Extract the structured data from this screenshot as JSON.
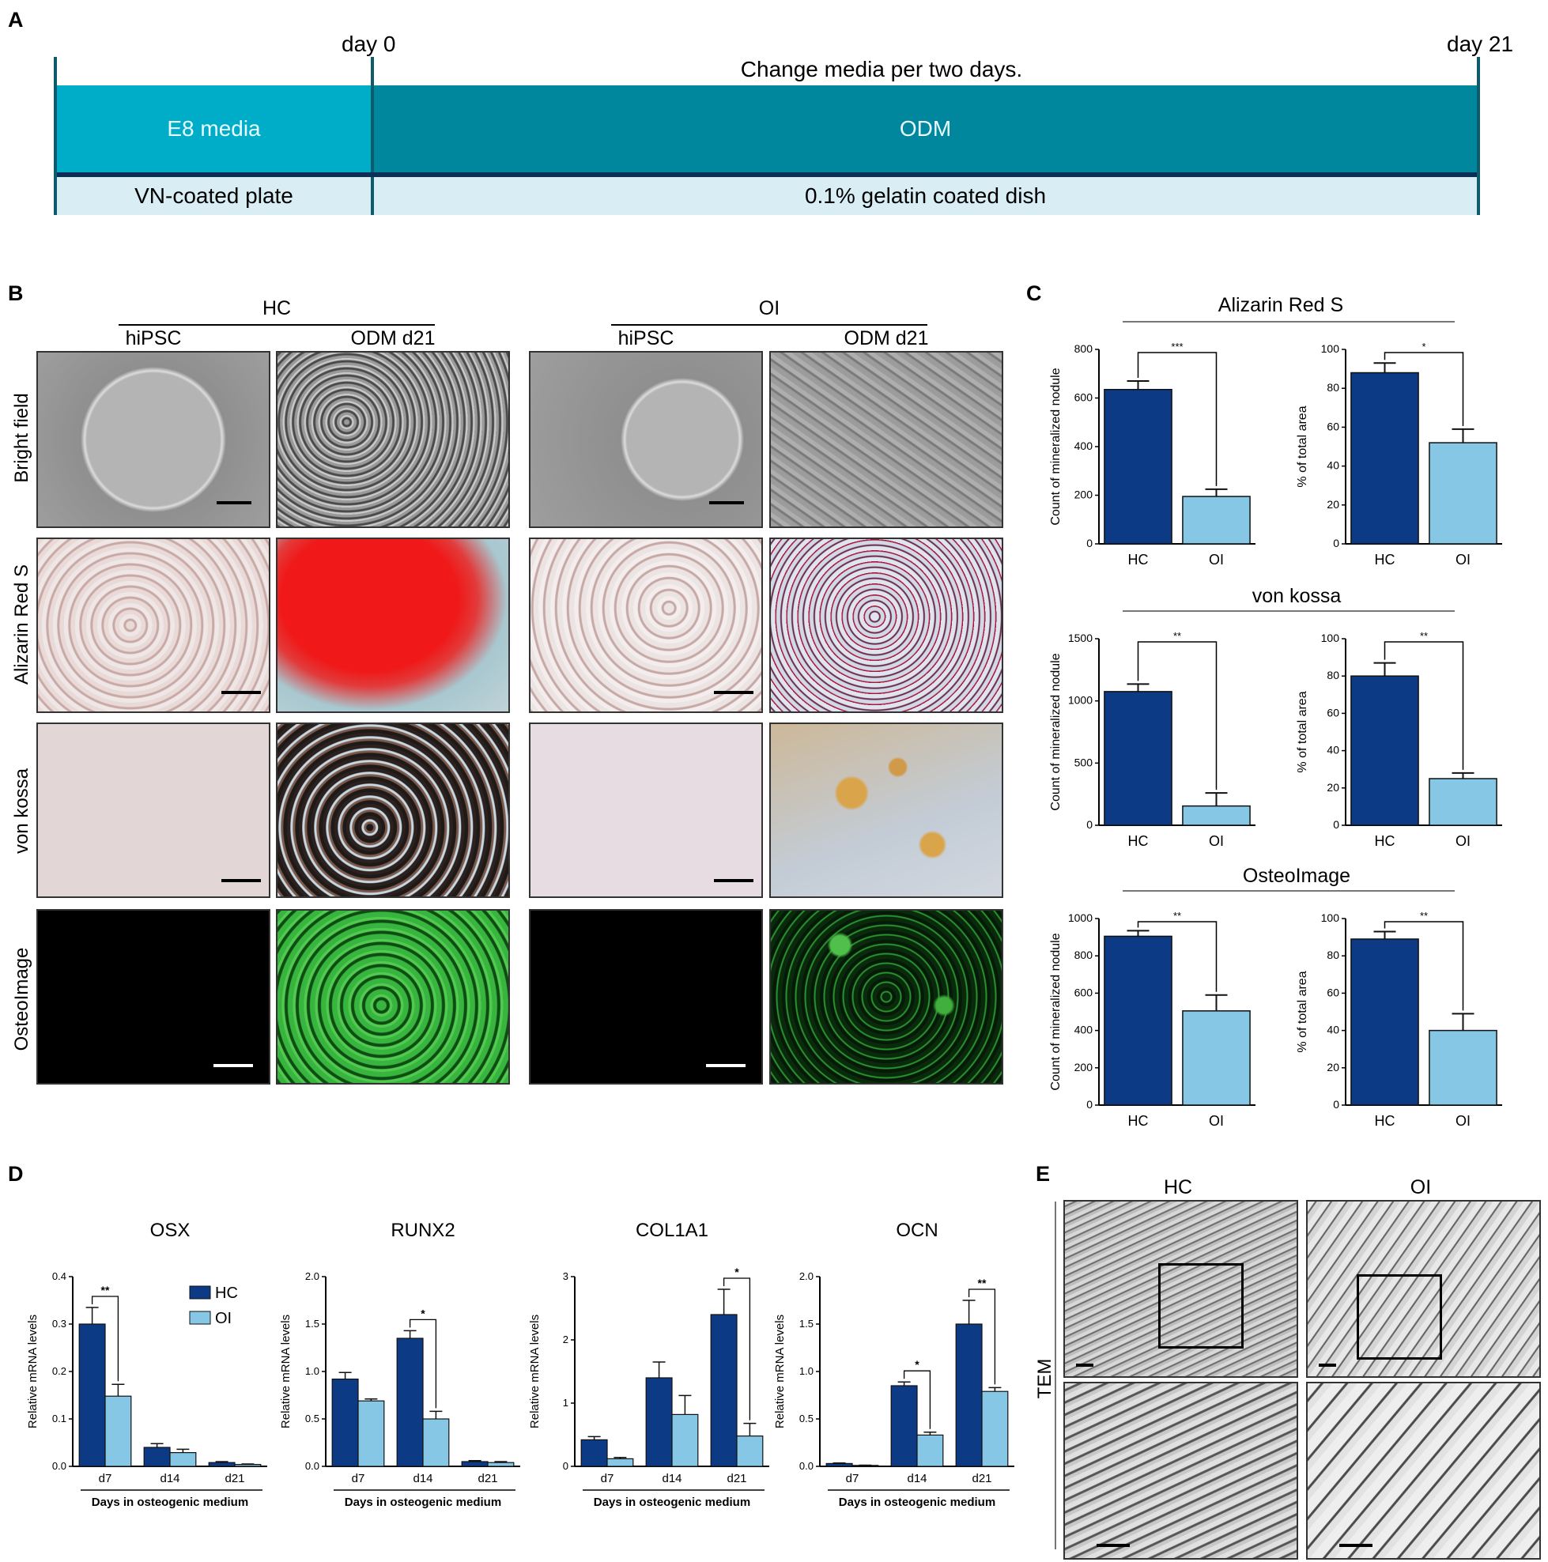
{
  "panels": {
    "A": "A",
    "B": "B",
    "C": "C",
    "D": "D",
    "E": "E"
  },
  "timeline": {
    "day0": "day 0",
    "day21": "day 21",
    "note": "Change media per two days.",
    "band1_left": "E8 media",
    "band1_right": "ODM",
    "band2_left": "VN-coated plate",
    "band2_right": "0.1% gelatin coated dish",
    "colors": {
      "teal_light": "#00adc9",
      "teal_dark": "#00879d",
      "pale": "#d8eef4",
      "divider": "#0d2f55"
    }
  },
  "micrographs": {
    "groups": [
      "HC",
      "OI"
    ],
    "columns": [
      "hiPSC",
      "ODM d21",
      "hiPSC",
      "ODM d21"
    ],
    "rows": [
      "Bright field",
      "Alizarin Red S",
      "von kossa",
      "OsteoImage"
    ]
  },
  "colors": {
    "hc": "#0d3a85",
    "oi": "#86c7e6"
  },
  "chart_data": [
    {
      "type": "bar",
      "title": "Alizarin Red S",
      "ylabel": "Count of mineralized nodule",
      "categories": [
        "HC",
        "OI"
      ],
      "values": [
        635,
        195
      ],
      "errors": [
        35,
        30
      ],
      "ylim": [
        0,
        800
      ],
      "yticks": [
        0,
        200,
        400,
        600,
        800
      ],
      "significance": "***"
    },
    {
      "type": "bar",
      "title": "",
      "ylabel": "% of total area",
      "categories": [
        "HC",
        "OI"
      ],
      "values": [
        88,
        52
      ],
      "errors": [
        5,
        7
      ],
      "ylim": [
        0,
        100
      ],
      "yticks": [
        0,
        20,
        40,
        60,
        80,
        100
      ],
      "significance": "*"
    },
    {
      "type": "bar",
      "title": "von kossa",
      "ylabel": "Count of mineralized nodule",
      "categories": [
        "HC",
        "OI"
      ],
      "values": [
        1075,
        155
      ],
      "errors": [
        60,
        105
      ],
      "ylim": [
        0,
        1500
      ],
      "yticks": [
        0,
        500,
        1000,
        1500
      ],
      "significance": "**"
    },
    {
      "type": "bar",
      "title": "",
      "ylabel": "% of total area",
      "categories": [
        "HC",
        "OI"
      ],
      "values": [
        80,
        25
      ],
      "errors": [
        7,
        3
      ],
      "ylim": [
        0,
        100
      ],
      "yticks": [
        0,
        20,
        40,
        60,
        80,
        100
      ],
      "significance": "**"
    },
    {
      "type": "bar",
      "title": "OsteoImage",
      "ylabel": "Count of mineralized nodule",
      "categories": [
        "HC",
        "OI"
      ],
      "values": [
        905,
        505
      ],
      "errors": [
        30,
        85
      ],
      "ylim": [
        0,
        1000
      ],
      "yticks": [
        0,
        200,
        400,
        600,
        800,
        1000
      ],
      "significance": "**"
    },
    {
      "type": "bar",
      "title": "",
      "ylabel": "% of total area",
      "categories": [
        "HC",
        "OI"
      ],
      "values": [
        89,
        40
      ],
      "errors": [
        4,
        9
      ],
      "ylim": [
        0,
        100
      ],
      "yticks": [
        0,
        20,
        40,
        60,
        80,
        100
      ],
      "significance": "**"
    },
    {
      "type": "bar",
      "title": "OSX",
      "ylabel": "Relative mRNA levels",
      "xlabel": "Days in osteogenic medium",
      "categories": [
        "d7",
        "d14",
        "d21"
      ],
      "series": [
        {
          "name": "HC",
          "values": [
            0.3,
            0.04,
            0.008
          ],
          "errors": [
            0.035,
            0.008,
            0.002
          ]
        },
        {
          "name": "OI",
          "values": [
            0.148,
            0.029,
            0.004
          ],
          "errors": [
            0.025,
            0.007,
            0.001
          ]
        }
      ],
      "ylim": [
        0,
        0.4
      ],
      "yticks": [
        "0.0",
        "0.1",
        "0.2",
        "0.3",
        "0.4"
      ],
      "legend": "top-right",
      "significance": [
        {
          "category": "d7",
          "mark": "**"
        }
      ]
    },
    {
      "type": "bar",
      "title": "RUNX2",
      "ylabel": "Relative mRNA levels",
      "xlabel": "Days in osteogenic medium",
      "categories": [
        "d7",
        "d14",
        "d21"
      ],
      "series": [
        {
          "name": "HC",
          "values": [
            0.92,
            1.35,
            0.05
          ],
          "errors": [
            0.07,
            0.08,
            0.01
          ]
        },
        {
          "name": "OI",
          "values": [
            0.69,
            0.5,
            0.04
          ],
          "errors": [
            0.02,
            0.08,
            0.01
          ]
        }
      ],
      "ylim": [
        0,
        2
      ],
      "yticks": [
        "0.0",
        "0.5",
        "1.0",
        "1.5",
        "2.0"
      ],
      "significance": [
        {
          "category": "d14",
          "mark": "*"
        }
      ]
    },
    {
      "type": "bar",
      "title": "COL1A1",
      "ylabel": "Relative mRNA levels",
      "xlabel": "Days in osteogenic medium",
      "categories": [
        "d7",
        "d14",
        "d21"
      ],
      "series": [
        {
          "name": "HC",
          "values": [
            0.42,
            1.4,
            2.4
          ],
          "errors": [
            0.05,
            0.25,
            0.4
          ]
        },
        {
          "name": "OI",
          "values": [
            0.12,
            0.82,
            0.48
          ],
          "errors": [
            0.02,
            0.3,
            0.2
          ]
        }
      ],
      "ylim": [
        0,
        3
      ],
      "yticks": [
        "0",
        "1",
        "2",
        "3"
      ],
      "significance": [
        {
          "category": "d21",
          "mark": "*"
        }
      ]
    },
    {
      "type": "bar",
      "title": "OCN",
      "ylabel": "Relative mRNA levels",
      "xlabel": "Days in osteogenic medium",
      "categories": [
        "d7",
        "d14",
        "d21"
      ],
      "series": [
        {
          "name": "HC",
          "values": [
            0.03,
            0.85,
            1.5
          ],
          "errors": [
            0.005,
            0.04,
            0.25
          ]
        },
        {
          "name": "OI",
          "values": [
            0.01,
            0.33,
            0.79
          ],
          "errors": [
            0.002,
            0.03,
            0.04
          ]
        }
      ],
      "ylim": [
        0,
        2
      ],
      "yticks": [
        "0.0",
        "0.5",
        "1.0",
        "1.5",
        "2.0"
      ],
      "significance": [
        {
          "category": "d14",
          "mark": "*"
        },
        {
          "category": "d21",
          "mark": "**"
        }
      ]
    }
  ],
  "tem": {
    "groups": [
      "HC",
      "OI"
    ],
    "label": "TEM"
  }
}
